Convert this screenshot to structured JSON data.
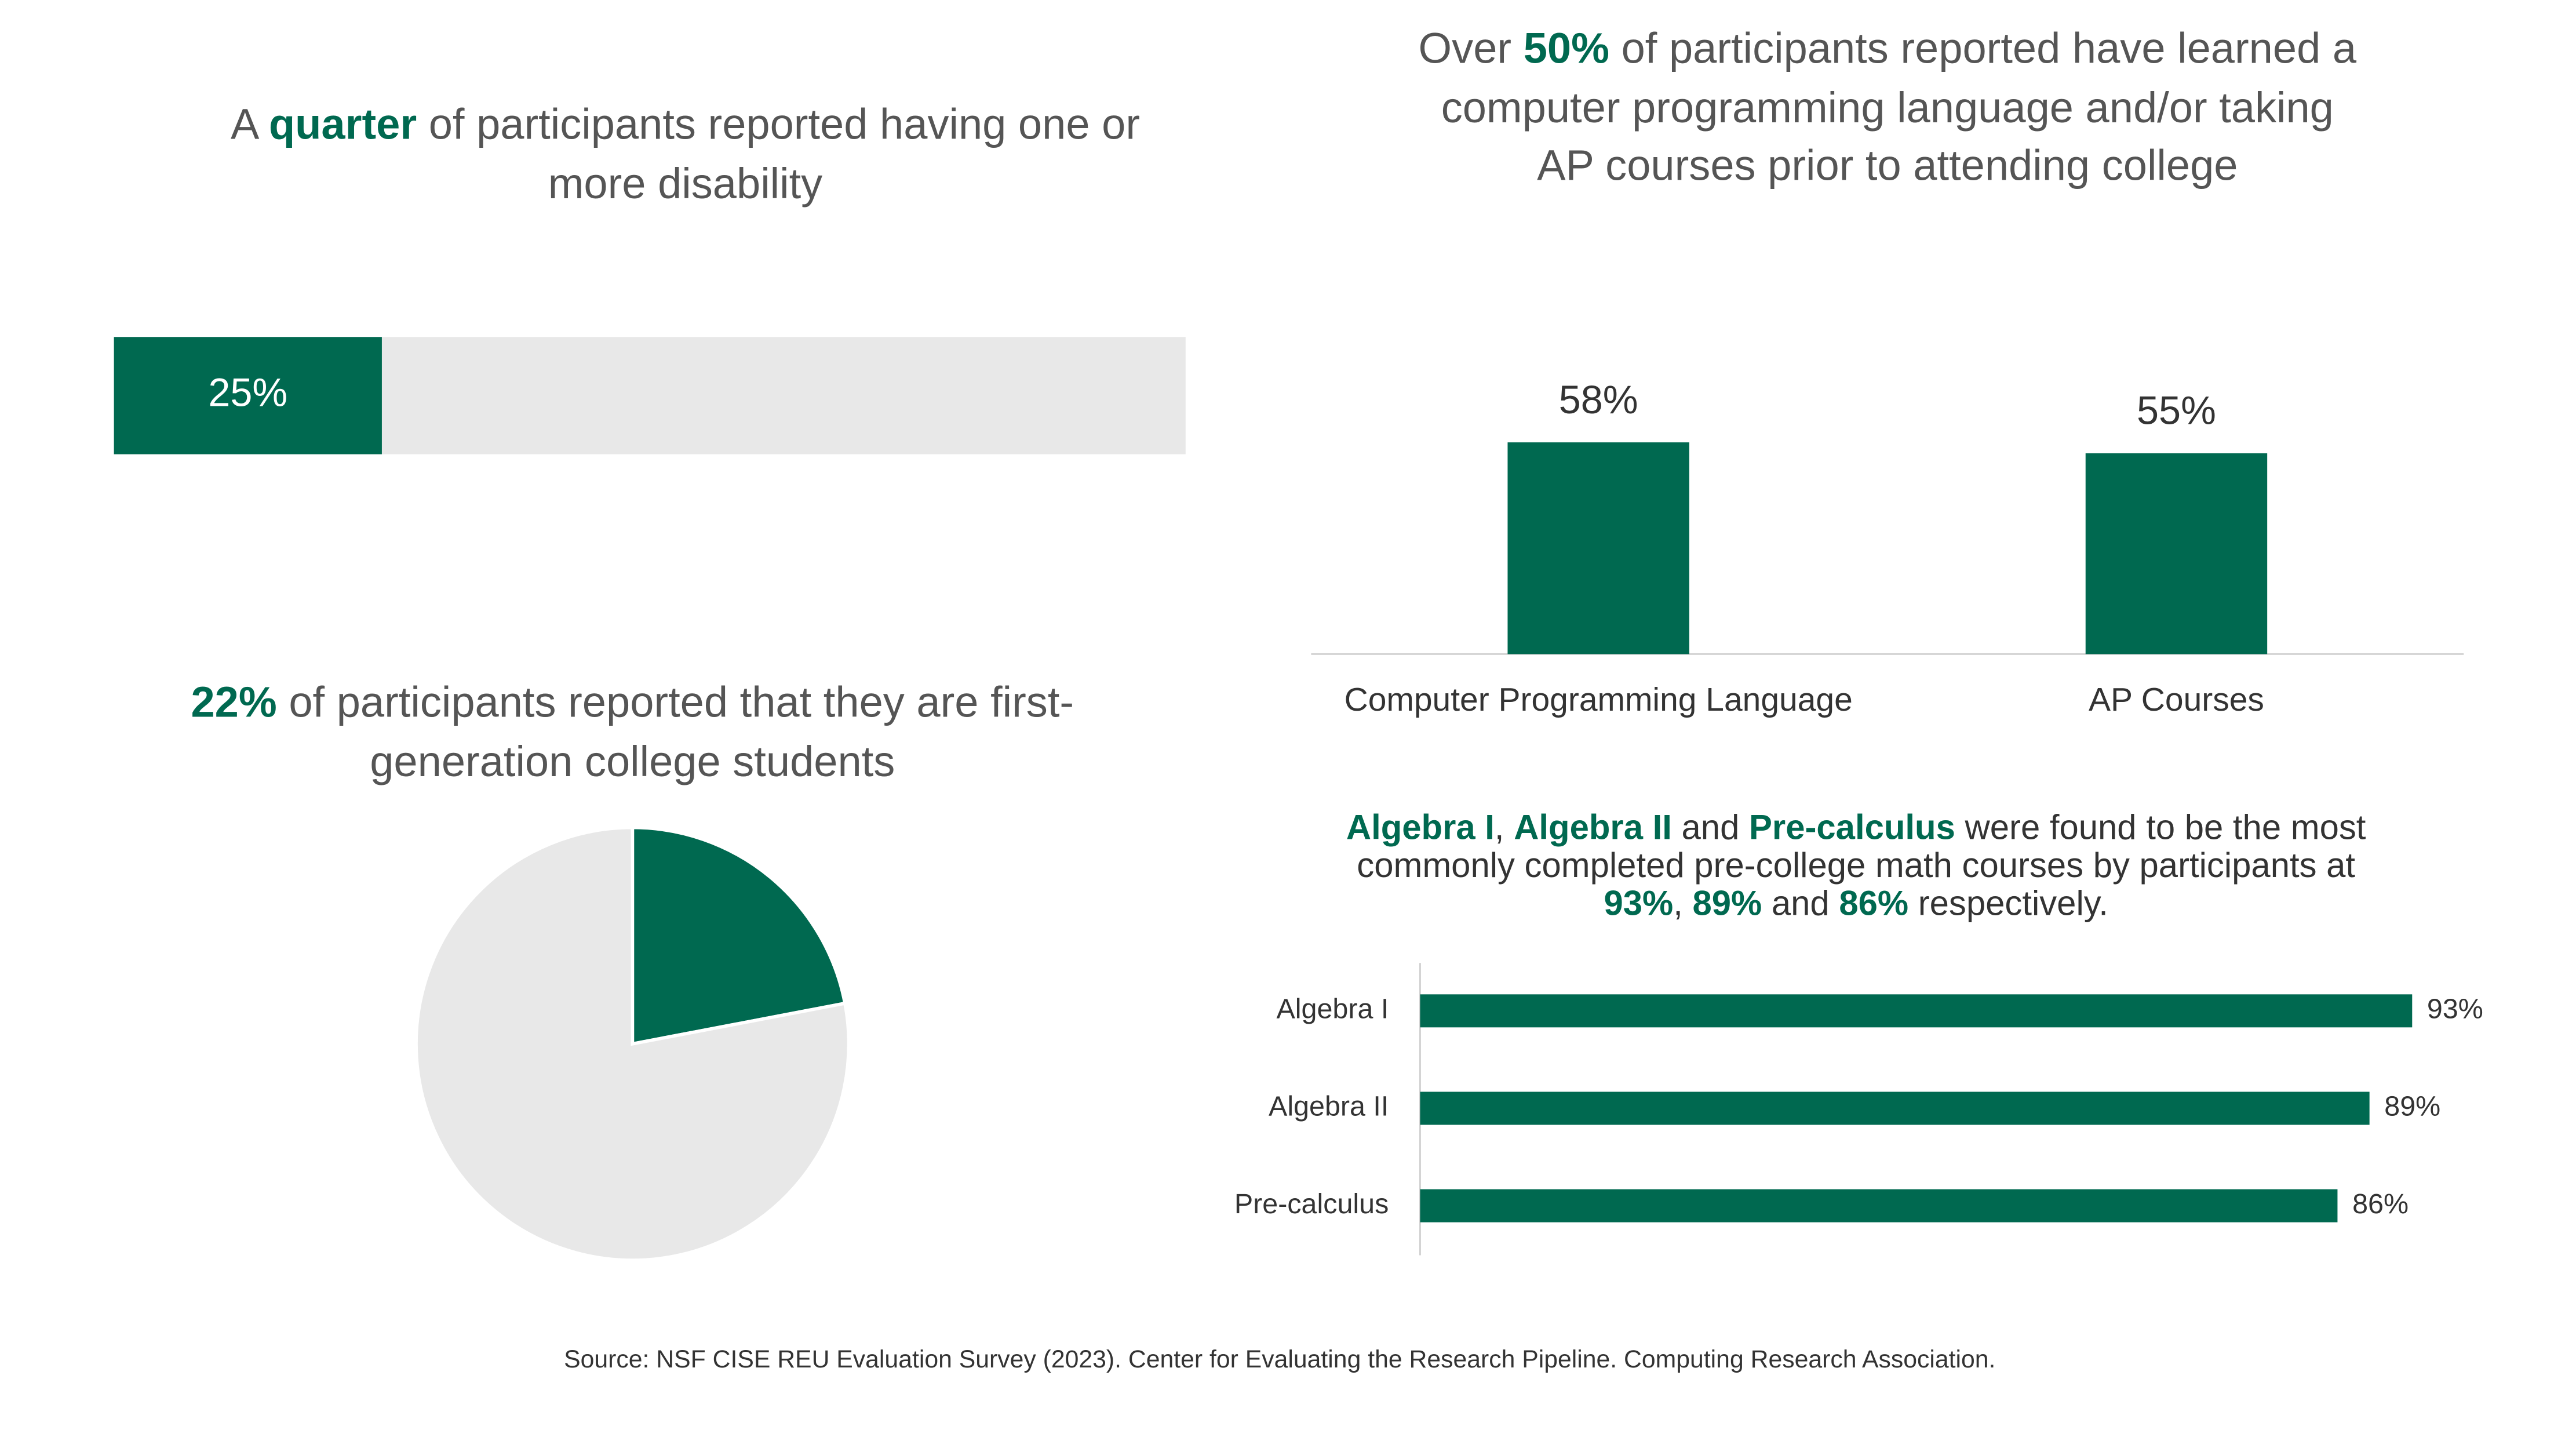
{
  "chart_data": [
    {
      "type": "progress",
      "title": [
        {
          "text": "A "
        },
        {
          "text": "quarter",
          "emphasis": true
        },
        {
          "text": " of participants reported having one or more disability"
        }
      ],
      "values": [
        25
      ],
      "value_labels": [
        "25%"
      ],
      "xlim": [
        0,
        100
      ],
      "color": "#006950",
      "track_color": "#e8e8e8"
    },
    {
      "type": "bar",
      "title": [
        {
          "text": "Over "
        },
        {
          "text": "50%",
          "emphasis": true
        },
        {
          "text": " of participants reported have learned a computer programming language and/or taking AP courses prior to attending college"
        }
      ],
      "categories": [
        "Computer Programming Language",
        "AP Courses"
      ],
      "values": [
        58,
        55
      ],
      "value_labels": [
        "58%",
        "55%"
      ],
      "ylim": [
        0,
        100
      ],
      "color": "#006950"
    },
    {
      "type": "pie",
      "title": [
        {
          "text": "22%",
          "emphasis": true
        },
        {
          "text": " of participants reported that they are first-generation college students"
        }
      ],
      "values": [
        22,
        78
      ],
      "colors": [
        "#006950",
        "#e8e8e8"
      ]
    },
    {
      "type": "hbar",
      "title": [
        {
          "text": "Algebra I",
          "emphasis": true
        },
        {
          "text": ", "
        },
        {
          "text": "Algebra II",
          "emphasis": true
        },
        {
          "text": " and "
        },
        {
          "text": "Pre-calculus",
          "emphasis": true
        },
        {
          "text": " were found to be the most commonly completed pre-college math courses by participants at "
        },
        {
          "text": "93%",
          "emphasis": true
        },
        {
          "text": ", "
        },
        {
          "text": "89%",
          "emphasis": true
        },
        {
          "text": " and "
        },
        {
          "text": "86%",
          "emphasis": true
        },
        {
          "text": " respectively."
        }
      ],
      "categories": [
        "Algebra I",
        "Algebra II",
        "Pre-calculus"
      ],
      "values": [
        93,
        89,
        86
      ],
      "value_labels": [
        "93%",
        "89%",
        "86%"
      ],
      "xlim": [
        0,
        100
      ],
      "color": "#006950"
    }
  ],
  "source": "Source: NSF CISE REU Evaluation Survey (2023). Center for Evaluating the Research Pipeline. Computing Research Association."
}
